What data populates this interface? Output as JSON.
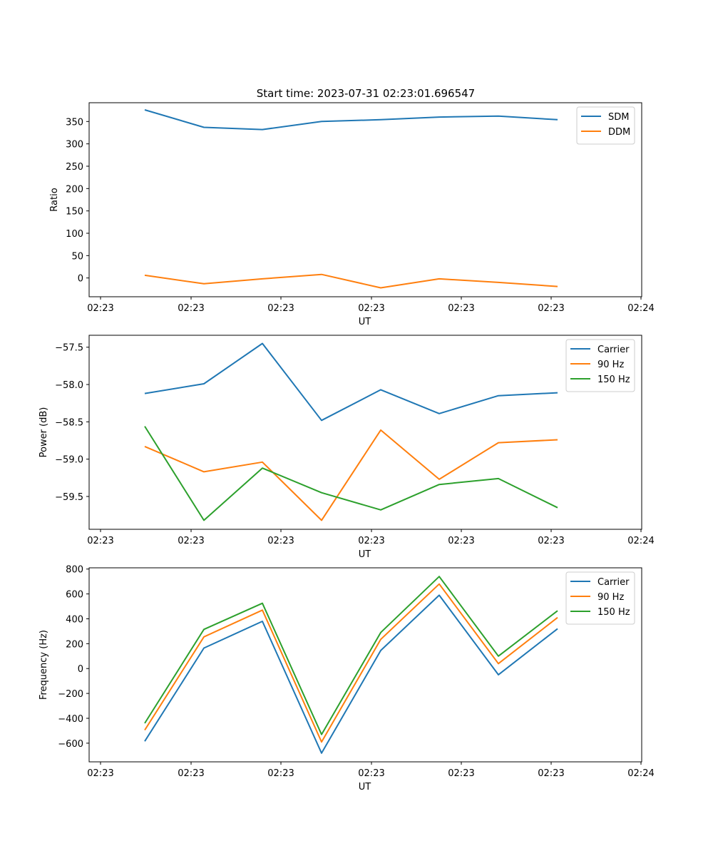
{
  "title": "Start time: 2023-07-31 02:23:01.696547",
  "colors": {
    "blue": "#1f77b4",
    "orange": "#ff7f0e",
    "green": "#2ca02c"
  },
  "chart_data": [
    {
      "type": "line",
      "xlabel": "UT",
      "ylabel": "Ratio",
      "x_tick_labels": [
        "02:23",
        "02:23",
        "02:23",
        "02:23",
        "02:23",
        "02:23",
        "02:24"
      ],
      "y_ticks": [
        0,
        50,
        100,
        150,
        200,
        250,
        300,
        350
      ],
      "y_tick_labels": [
        "0",
        "50",
        "100",
        "150",
        "200",
        "250",
        "300",
        "350"
      ],
      "ylim": [
        -42,
        392
      ],
      "legend": "top-right",
      "series": [
        {
          "name": "SDM",
          "color": "#1f77b4",
          "values": [
            376,
            337,
            332,
            350,
            354,
            360,
            362,
            354
          ]
        },
        {
          "name": "DDM",
          "color": "#ff7f0e",
          "values": [
            6,
            -13,
            -2,
            8,
            -22,
            -2,
            -10,
            -19
          ]
        }
      ]
    },
    {
      "type": "line",
      "xlabel": "UT",
      "ylabel": "Power (dB)",
      "x_tick_labels": [
        "02:23",
        "02:23",
        "02:23",
        "02:23",
        "02:23",
        "02:23",
        "02:24"
      ],
      "y_ticks": [
        -59.5,
        -59.0,
        -58.5,
        -58.0,
        -57.5
      ],
      "y_tick_labels": [
        "−59.5",
        "−59.0",
        "−58.5",
        "−58.0",
        "−57.5"
      ],
      "ylim": [
        -59.94,
        -57.34
      ],
      "legend": "top-right",
      "series": [
        {
          "name": "Carrier",
          "color": "#1f77b4",
          "values": [
            -58.12,
            -57.99,
            -57.45,
            -58.48,
            -58.07,
            -58.39,
            -58.15,
            -58.11
          ]
        },
        {
          "name": "90 Hz",
          "color": "#ff7f0e",
          "values": [
            -58.83,
            -59.17,
            -59.04,
            -59.82,
            -58.61,
            -59.27,
            -58.78,
            -58.74
          ]
        },
        {
          "name": "150 Hz",
          "color": "#2ca02c",
          "values": [
            -58.56,
            -59.82,
            -59.12,
            -59.45,
            -59.68,
            -59.34,
            -59.26,
            -59.65
          ]
        }
      ]
    },
    {
      "type": "line",
      "xlabel": "UT",
      "ylabel": "Frequency (Hz)",
      "x_tick_labels": [
        "02:23",
        "02:23",
        "02:23",
        "02:23",
        "02:23",
        "02:23",
        "02:24"
      ],
      "y_ticks": [
        -600,
        -400,
        -200,
        0,
        200,
        400,
        600,
        800
      ],
      "y_tick_labels": [
        "−600",
        "−400",
        "−200",
        "0",
        "200",
        "400",
        "600",
        "800"
      ],
      "ylim": [
        -750,
        810
      ],
      "legend": "top-right",
      "series": [
        {
          "name": "Carrier",
          "color": "#1f77b4",
          "values": [
            -585,
            165,
            380,
            -680,
            145,
            590,
            -50,
            320
          ]
        },
        {
          "name": "90 Hz",
          "color": "#ff7f0e",
          "values": [
            -495,
            255,
            470,
            -590,
            235,
            680,
            40,
            410
          ]
        },
        {
          "name": "150 Hz",
          "color": "#2ca02c",
          "values": [
            -440,
            315,
            525,
            -530,
            290,
            740,
            100,
            465
          ]
        }
      ]
    }
  ]
}
